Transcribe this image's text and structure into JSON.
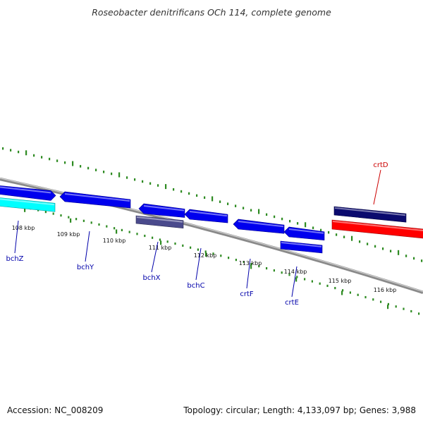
{
  "title": "Roseobacter denitrificans OCh 114, complete genome",
  "footer": {
    "accession": "Accession: NC_008209",
    "summary": "Topology: circular; Length: 4,133,097 bp; Genes: 3,988"
  },
  "colors": {
    "ruler": "#2e8b22",
    "backbone": "#8a8a8a",
    "gene_label": "#0000aa",
    "highlight_label": "#cc0000",
    "tick_label": "#111111"
  },
  "tick_labels": [
    "108 kbp",
    "109 kbp",
    "110 kbp",
    "111 kbp",
    "112 kbp",
    "113 kbp",
    "114 kbp",
    "115 kbp",
    "116 kbp"
  ],
  "gene_labels": [
    {
      "name": "bchZ",
      "color": "#0000aa"
    },
    {
      "name": "bchY",
      "color": "#0000aa"
    },
    {
      "name": "bchX",
      "color": "#0000aa"
    },
    {
      "name": "bchC",
      "color": "#0000aa"
    },
    {
      "name": "crtF",
      "color": "#0000aa"
    },
    {
      "name": "crtE",
      "color": "#0000aa"
    },
    {
      "name": "crtD",
      "color": "#cc0000"
    }
  ],
  "features": [
    {
      "name": "bchZ",
      "track": "upper",
      "fill": "#0000ee"
    },
    {
      "name": "bchY",
      "track": "upper",
      "fill": "#0000ee"
    },
    {
      "name": "bchX",
      "track": "upper",
      "fill": "#0000ee"
    },
    {
      "name": "bchC",
      "track": "upper",
      "fill": "#0000ee"
    },
    {
      "name": "crtF",
      "track": "upper",
      "fill": "#0000ee"
    },
    {
      "name": "crtE",
      "track": "upper",
      "fill": "#0000ee"
    },
    {
      "name": "crtD",
      "track": "upper",
      "fill": "#0a0a6e"
    },
    {
      "name": "unlabeled-cyan",
      "track": "lower",
      "fill": "#00ffff"
    },
    {
      "name": "unlabeled-slate",
      "track": "lower",
      "fill": "#4a4a8c"
    },
    {
      "name": "unlabeled-blue",
      "track": "lower",
      "fill": "#0000ee"
    },
    {
      "name": "unlabeled-red",
      "track": "lower",
      "fill": "#ff0000"
    }
  ]
}
